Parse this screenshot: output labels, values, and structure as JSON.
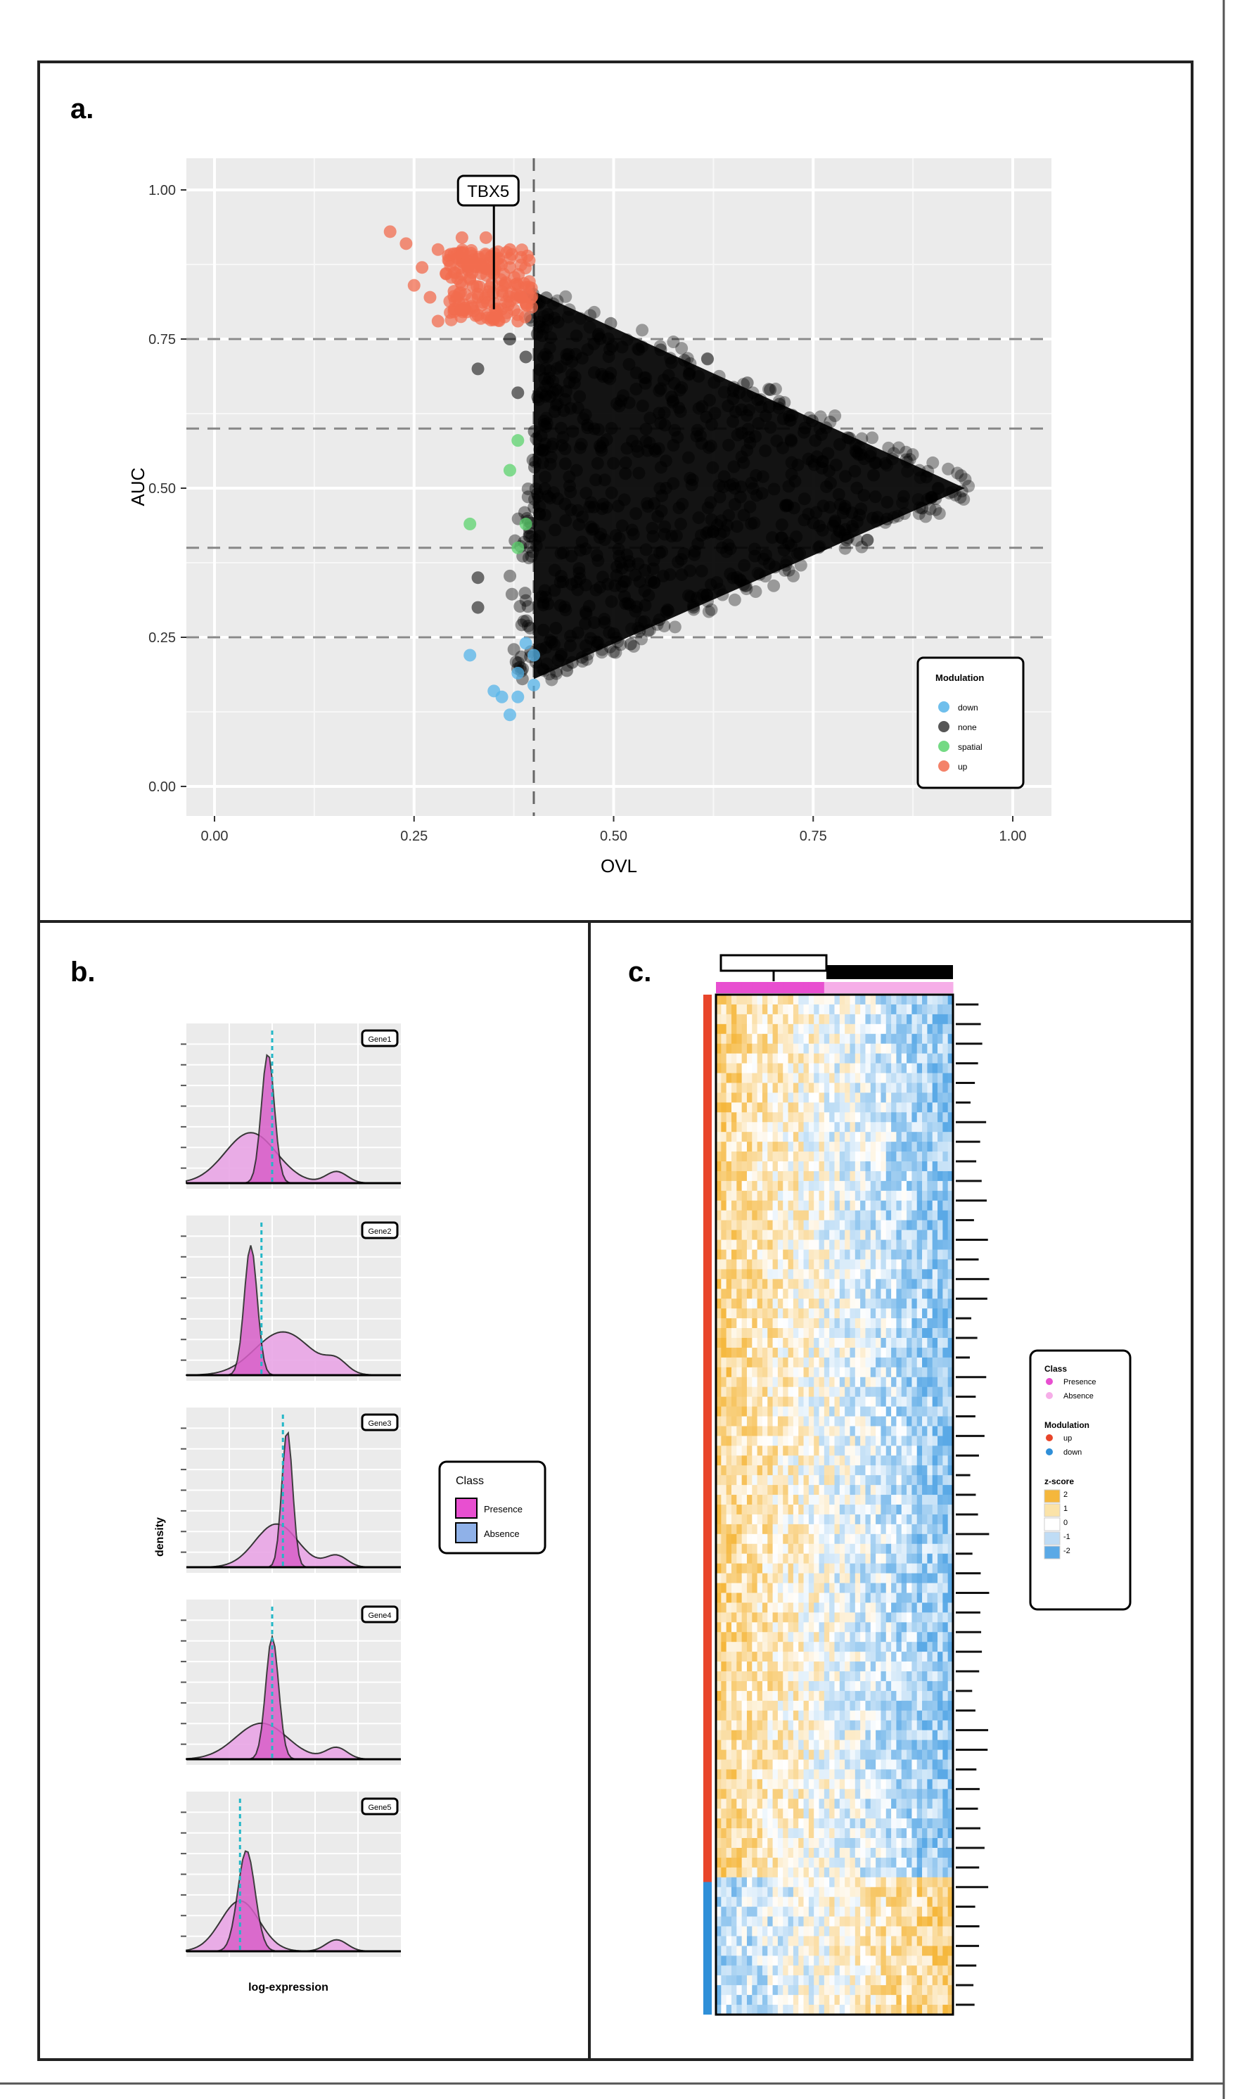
{
  "panel_a": {
    "label": "a.",
    "chart_data": {
      "type": "scatter",
      "xlabel": "OVL",
      "ylabel": "AUC",
      "xlim": [
        0,
        1.0
      ],
      "ylim": [
        0,
        1.0
      ],
      "xticks": [
        0.0,
        0.25,
        0.5,
        0.75,
        1.0
      ],
      "yticks": [
        0.0,
        0.25,
        0.5,
        0.75,
        1.0
      ],
      "xtick_labels": [
        "0.00",
        "0.25",
        "0.50",
        "0.75",
        "1.00"
      ],
      "ytick_labels": [
        "0.00",
        "0.25",
        "0.50",
        "0.75",
        "1.00"
      ],
      "hlines": [
        0.25,
        0.4,
        0.6,
        0.75
      ],
      "vline": 0.4,
      "annotation": {
        "text": "TBX5",
        "x": 0.35,
        "y": 0.8
      },
      "legend": {
        "placement": "bottom-right",
        "title": "Modulation",
        "items": [
          {
            "label": "down",
            "color": "#56b4e9"
          },
          {
            "label": "none",
            "color": "#3a3a3a"
          },
          {
            "label": "spatial",
            "color": "#5cd36e"
          },
          {
            "label": "up",
            "color": "#f26c4f"
          }
        ]
      },
      "series": [
        {
          "name": "up",
          "color": "#f26c4f",
          "points": [
            [
              0.22,
              0.93
            ],
            [
              0.24,
              0.91
            ],
            [
              0.26,
              0.87
            ],
            [
              0.25,
              0.84
            ],
            [
              0.28,
              0.9
            ],
            [
              0.29,
              0.86
            ],
            [
              0.3,
              0.83
            ],
            [
              0.31,
              0.88
            ],
            [
              0.32,
              0.85
            ],
            [
              0.33,
              0.82
            ],
            [
              0.34,
              0.89
            ],
            [
              0.35,
              0.86
            ],
            [
              0.36,
              0.83
            ],
            [
              0.37,
              0.87
            ],
            [
              0.38,
              0.84
            ],
            [
              0.39,
              0.81
            ],
            [
              0.33,
              0.79
            ],
            [
              0.3,
              0.8
            ],
            [
              0.28,
              0.78
            ],
            [
              0.36,
              0.8
            ],
            [
              0.38,
              0.78
            ],
            [
              0.31,
              0.92
            ],
            [
              0.34,
              0.92
            ],
            [
              0.37,
              0.9
            ],
            [
              0.27,
              0.82
            ],
            [
              0.35,
              0.81
            ]
          ]
        },
        {
          "name": "none",
          "color": "#000000",
          "points": [
            [
              0.33,
              0.7
            ],
            [
              0.33,
              0.35
            ],
            [
              0.33,
              0.3
            ],
            [
              0.37,
              0.75
            ],
            [
              0.39,
              0.72
            ],
            [
              0.38,
              0.66
            ]
          ]
        },
        {
          "name": "spatial",
          "color": "#5cd36e",
          "points": [
            [
              0.38,
              0.58
            ],
            [
              0.37,
              0.53
            ],
            [
              0.39,
              0.44
            ],
            [
              0.38,
              0.4
            ],
            [
              0.32,
              0.44
            ]
          ]
        },
        {
          "name": "down",
          "color": "#56b4e9",
          "points": [
            [
              0.32,
              0.22
            ],
            [
              0.35,
              0.16
            ],
            [
              0.36,
              0.15
            ],
            [
              0.37,
              0.12
            ],
            [
              0.38,
              0.19
            ],
            [
              0.39,
              0.24
            ],
            [
              0.4,
              0.17
            ],
            [
              0.4,
              0.22
            ],
            [
              0.38,
              0.15
            ]
          ]
        }
      ],
      "dense_region": {
        "series": "none",
        "vertices": [
          [
            0.4,
            0.83
          ],
          [
            0.94,
            0.5
          ],
          [
            0.4,
            0.18
          ]
        ],
        "opacity": 0.45
      }
    }
  },
  "panel_b": {
    "label": "b.",
    "chart_data": {
      "type": "area",
      "xlabel": "log-expression",
      "ylabel": "density",
      "legend": {
        "placement": "right",
        "title": "Class",
        "items": [
          {
            "label": "Presence",
            "color": "#e84fd0"
          },
          {
            "label": "Absence",
            "color": "#8fb1e8"
          }
        ]
      },
      "facets": [
        {
          "gene": "Gene1",
          "cutoff": 0.4,
          "presence_peak": {
            "center": 0.38,
            "height": 0.9,
            "width": 0.03
          },
          "absence_peak": {
            "center": 0.3,
            "height": 0.35,
            "width": 0.12
          }
        },
        {
          "gene": "Gene2",
          "cutoff": 0.35,
          "presence_peak": {
            "center": 0.3,
            "height": 0.9,
            "width": 0.03
          },
          "absence_peak": {
            "center": 0.45,
            "height": 0.3,
            "width": 0.13
          }
        },
        {
          "gene": "Gene3",
          "cutoff": 0.45,
          "presence_peak": {
            "center": 0.47,
            "height": 0.95,
            "width": 0.025
          },
          "absence_peak": {
            "center": 0.42,
            "height": 0.3,
            "width": 0.1
          }
        },
        {
          "gene": "Gene4",
          "cutoff": 0.4,
          "presence_peak": {
            "center": 0.4,
            "height": 0.85,
            "width": 0.03
          },
          "absence_peak": {
            "center": 0.35,
            "height": 0.25,
            "width": 0.12
          }
        },
        {
          "gene": "Gene5",
          "cutoff": 0.25,
          "presence_peak": {
            "center": 0.28,
            "height": 0.7,
            "width": 0.04
          },
          "absence_peak": {
            "center": 0.25,
            "height": 0.35,
            "width": 0.09
          }
        }
      ]
    }
  },
  "panel_c": {
    "label": "c.",
    "chart_data": {
      "type": "heatmap",
      "rows": 104,
      "cols": 46,
      "row_split": {
        "up_fraction": 0.87,
        "up_color": "#e8452a",
        "down_color": "#2f8fd8"
      },
      "column_annotation": {
        "presence_fraction": 0.45,
        "presence_color": "#e84fd0",
        "absence_color": "#f6aee8"
      },
      "color_scale": {
        "low": "#f5b73c",
        "mid": "#ffffff",
        "high": "#5aa9e6"
      },
      "legend": {
        "placement": "right",
        "sections": [
          {
            "title": "Class",
            "items": [
              {
                "label": "Presence",
                "color": "#e84fd0"
              },
              {
                "label": "Absence",
                "color": "#f6aee8"
              }
            ]
          },
          {
            "title": "Modulation",
            "items": [
              {
                "label": "up",
                "color": "#e8452a"
              },
              {
                "label": "down",
                "color": "#2f8fd8"
              }
            ]
          },
          {
            "title": "z-score",
            "items": [
              {
                "label": "2",
                "color": "#f5b73c"
              },
              {
                "label": "1",
                "color": "#fbe3a8"
              },
              {
                "label": "0",
                "color": "#ffffff"
              },
              {
                "label": "-1",
                "color": "#bfdcf5"
              },
              {
                "label": "-2",
                "color": "#5aa9e6"
              }
            ]
          }
        ]
      }
    }
  }
}
